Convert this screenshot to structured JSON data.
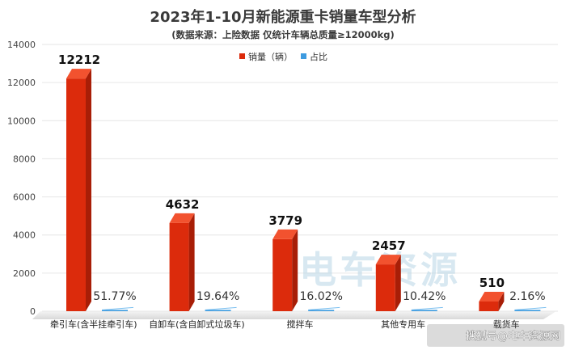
{
  "chart_data": {
    "type": "bar",
    "title": "2023年1-10月新能源重卡销量车型分析",
    "subtitle": "(数据来源：上险数据 仅统计车辆总质量≥12000kg)",
    "categories": [
      "牵引车(含半挂牵引车)",
      "自卸车(含自卸式垃圾车)",
      "搅拌车",
      "其他专用车",
      "载货车"
    ],
    "series": [
      {
        "name": "销量（辆）",
        "values": [
          12212,
          4632,
          3779,
          2457,
          510
        ],
        "labels": [
          "12212",
          "4632",
          "3779",
          "2457",
          "510"
        ],
        "color": "#dc2b0c"
      },
      {
        "name": "占比",
        "values": [
          51.77,
          19.64,
          16.02,
          10.42,
          2.16
        ],
        "labels": [
          "51.77%",
          "19.64%",
          "16.02%",
          "10.42%",
          "2.16%"
        ],
        "color": "#3d9be0"
      }
    ],
    "ylim": [
      0,
      14000
    ],
    "yticks": [
      0,
      2000,
      4000,
      6000,
      8000,
      10000,
      12000,
      14000
    ],
    "grid": true,
    "legend_position": "top-center"
  },
  "watermark": "电车资源",
  "credit": "搜狐号@电车资源网"
}
